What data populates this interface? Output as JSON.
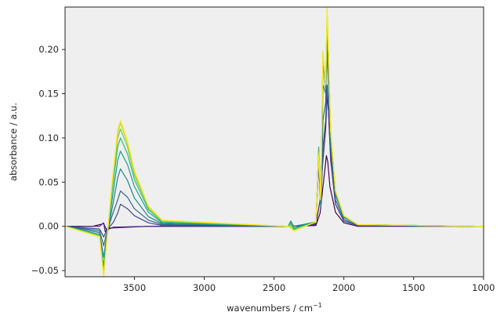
{
  "chart_data": {
    "type": "line",
    "title": "",
    "xlabel": "wavenumbers / cm",
    "xlabel_superscript": "−1",
    "ylabel": "absorbance / a.u.",
    "xlim": [
      3997,
      999
    ],
    "x_reversed": true,
    "ylim": [
      -0.057,
      0.248
    ],
    "xticks": [
      3500,
      3000,
      2500,
      2000,
      1500,
      1000
    ],
    "yticks": [
      -0.05,
      0.0,
      0.05,
      0.1,
      0.15,
      0.2
    ],
    "ytick_labels": [
      "−0.05",
      "0.00",
      "0.05",
      "0.10",
      "0.15",
      "0.20"
    ],
    "grid": false,
    "background": "#efefef",
    "colormap": "viridis",
    "series": [
      {
        "color": "#440154",
        "values": [
          [
            3997,
            0.0
          ],
          [
            3800,
            0.0
          ],
          [
            3720,
            0.003
          ],
          [
            3700,
            -0.004
          ],
          [
            3650,
            -0.001
          ],
          [
            3400,
            0.0
          ],
          [
            2400,
            0.0
          ],
          [
            2200,
            0.001
          ],
          [
            2170,
            0.015
          ],
          [
            2150,
            0.045
          ],
          [
            2135,
            0.066
          ],
          [
            2125,
            0.08
          ],
          [
            2115,
            0.073
          ],
          [
            2100,
            0.045
          ],
          [
            2060,
            0.016
          ],
          [
            2000,
            0.004
          ],
          [
            1900,
            0.0
          ],
          [
            1000,
            0.0
          ]
        ]
      },
      {
        "color": "#482878",
        "values": [
          [
            3997,
            0.0
          ],
          [
            3750,
            0.0
          ],
          [
            3720,
            0.004
          ],
          [
            3710,
            -0.006
          ],
          [
            3690,
            -0.002
          ],
          [
            3400,
            0.0
          ],
          [
            2400,
            0.0
          ],
          [
            2200,
            0.002
          ],
          [
            2170,
            0.03
          ],
          [
            2150,
            0.075
          ],
          [
            2130,
            0.11
          ],
          [
            2120,
            0.148
          ],
          [
            2110,
            0.13
          ],
          [
            2095,
            0.075
          ],
          [
            2060,
            0.025
          ],
          [
            2000,
            0.006
          ],
          [
            1900,
            0.001
          ],
          [
            1000,
            0.0
          ]
        ]
      },
      {
        "color": "#3e4989",
        "values": [
          [
            3997,
            0.0
          ],
          [
            3750,
            -0.003
          ],
          [
            3720,
            -0.012
          ],
          [
            3700,
            -0.005
          ],
          [
            3650,
            0.005
          ],
          [
            3620,
            0.015
          ],
          [
            3600,
            0.025
          ],
          [
            3550,
            0.02
          ],
          [
            3500,
            0.012
          ],
          [
            3400,
            0.004
          ],
          [
            3300,
            0.001
          ],
          [
            2400,
            0.0
          ],
          [
            2380,
            0.004
          ],
          [
            2360,
            0.0
          ],
          [
            2200,
            0.003
          ],
          [
            2180,
            0.07
          ],
          [
            2165,
            0.02
          ],
          [
            2150,
            0.09
          ],
          [
            2130,
            0.12
          ],
          [
            2120,
            0.16
          ],
          [
            2110,
            0.13
          ],
          [
            2095,
            0.08
          ],
          [
            2060,
            0.025
          ],
          [
            2000,
            0.006
          ],
          [
            1900,
            0.001
          ],
          [
            1000,
            0.0
          ]
        ]
      },
      {
        "color": "#31688e",
        "values": [
          [
            3997,
            0.0
          ],
          [
            3750,
            -0.005
          ],
          [
            3720,
            -0.022
          ],
          [
            3700,
            -0.008
          ],
          [
            3660,
            0.012
          ],
          [
            3620,
            0.03
          ],
          [
            3600,
            0.04
          ],
          [
            3550,
            0.033
          ],
          [
            3500,
            0.02
          ],
          [
            3400,
            0.007
          ],
          [
            3300,
            0.002
          ],
          [
            2400,
            0.0
          ],
          [
            2380,
            0.005
          ],
          [
            2360,
            0.0
          ],
          [
            2200,
            0.004
          ],
          [
            2180,
            0.08
          ],
          [
            2165,
            0.022
          ],
          [
            2150,
            0.12
          ],
          [
            2130,
            0.14
          ],
          [
            2120,
            0.2
          ],
          [
            2110,
            0.16
          ],
          [
            2095,
            0.09
          ],
          [
            2060,
            0.03
          ],
          [
            2000,
            0.008
          ],
          [
            1900,
            0.001
          ],
          [
            1000,
            0.0
          ]
        ]
      },
      {
        "color": "#26828e",
        "values": [
          [
            3997,
            0.0
          ],
          [
            3750,
            -0.007
          ],
          [
            3720,
            -0.035
          ],
          [
            3700,
            -0.012
          ],
          [
            3660,
            0.02
          ],
          [
            3620,
            0.055
          ],
          [
            3600,
            0.065
          ],
          [
            3550,
            0.052
          ],
          [
            3500,
            0.032
          ],
          [
            3400,
            0.011
          ],
          [
            3300,
            0.003
          ],
          [
            2400,
            0.0
          ],
          [
            2380,
            0.006
          ],
          [
            2360,
            0.0
          ],
          [
            2200,
            0.005
          ],
          [
            2180,
            0.085
          ],
          [
            2165,
            0.025
          ],
          [
            2150,
            0.16
          ],
          [
            2130,
            0.15
          ],
          [
            2120,
            0.22
          ],
          [
            2110,
            0.18
          ],
          [
            2095,
            0.1
          ],
          [
            2060,
            0.035
          ],
          [
            2000,
            0.01
          ],
          [
            1900,
            0.002
          ],
          [
            1000,
            0.0
          ]
        ]
      },
      {
        "color": "#1f9e89",
        "values": [
          [
            3997,
            0.0
          ],
          [
            3750,
            -0.009
          ],
          [
            3720,
            -0.045
          ],
          [
            3700,
            -0.016
          ],
          [
            3660,
            0.03
          ],
          [
            3620,
            0.075
          ],
          [
            3600,
            0.085
          ],
          [
            3550,
            0.07
          ],
          [
            3500,
            0.045
          ],
          [
            3400,
            0.016
          ],
          [
            3300,
            0.004
          ],
          [
            2400,
            0.0
          ],
          [
            2380,
            0.006
          ],
          [
            2360,
            -0.002
          ],
          [
            2200,
            0.005
          ],
          [
            2180,
            0.088
          ],
          [
            2165,
            0.028
          ],
          [
            2150,
            0.185
          ],
          [
            2130,
            0.155
          ],
          [
            2120,
            0.235
          ],
          [
            2110,
            0.19
          ],
          [
            2095,
            0.105
          ],
          [
            2060,
            0.038
          ],
          [
            2000,
            0.011
          ],
          [
            1900,
            0.002
          ],
          [
            1000,
            0.0
          ]
        ]
      },
      {
        "color": "#35b779",
        "values": [
          [
            3997,
            0.0
          ],
          [
            3750,
            -0.01
          ],
          [
            3720,
            -0.052
          ],
          [
            3700,
            -0.018
          ],
          [
            3660,
            0.04
          ],
          [
            3620,
            0.09
          ],
          [
            3600,
            0.1
          ],
          [
            3550,
            0.082
          ],
          [
            3500,
            0.053
          ],
          [
            3400,
            0.019
          ],
          [
            3300,
            0.005
          ],
          [
            2400,
            0.0
          ],
          [
            2380,
            0.004
          ],
          [
            2360,
            -0.003
          ],
          [
            2200,
            0.005
          ],
          [
            2180,
            0.09
          ],
          [
            2165,
            0.03
          ],
          [
            2150,
            0.195
          ],
          [
            2130,
            0.16
          ],
          [
            2120,
            0.24
          ],
          [
            2110,
            0.195
          ],
          [
            2095,
            0.108
          ],
          [
            2060,
            0.04
          ],
          [
            2000,
            0.012
          ],
          [
            1900,
            0.002
          ],
          [
            1000,
            0.0
          ]
        ]
      },
      {
        "color": "#6ece58",
        "values": [
          [
            3997,
            0.0
          ],
          [
            3750,
            -0.011
          ],
          [
            3720,
            -0.055
          ],
          [
            3700,
            -0.019
          ],
          [
            3660,
            0.045
          ],
          [
            3620,
            0.1
          ],
          [
            3600,
            0.11
          ],
          [
            3550,
            0.09
          ],
          [
            3500,
            0.058
          ],
          [
            3400,
            0.021
          ],
          [
            3300,
            0.006
          ],
          [
            2400,
            0.0
          ],
          [
            2380,
            0.002
          ],
          [
            2360,
            -0.004
          ],
          [
            2200,
            0.005
          ],
          [
            2180,
            0.085
          ],
          [
            2165,
            0.03
          ],
          [
            2150,
            0.197
          ],
          [
            2130,
            0.16
          ],
          [
            2120,
            0.242
          ],
          [
            2110,
            0.195
          ],
          [
            2095,
            0.108
          ],
          [
            2060,
            0.04
          ],
          [
            2000,
            0.012
          ],
          [
            1900,
            0.002
          ],
          [
            1000,
            0.0
          ]
        ]
      },
      {
        "color": "#b5de2b",
        "values": [
          [
            3997,
            0.0
          ],
          [
            3750,
            -0.011
          ],
          [
            3720,
            -0.056
          ],
          [
            3700,
            -0.019
          ],
          [
            3660,
            0.048
          ],
          [
            3620,
            0.105
          ],
          [
            3600,
            0.117
          ],
          [
            3550,
            0.094
          ],
          [
            3500,
            0.061
          ],
          [
            3400,
            0.022
          ],
          [
            3300,
            0.006
          ],
          [
            2400,
            0.0
          ],
          [
            2380,
            0.0
          ],
          [
            2360,
            -0.005
          ],
          [
            2200,
            0.005
          ],
          [
            2180,
            0.083
          ],
          [
            2165,
            0.03
          ],
          [
            2150,
            0.198
          ],
          [
            2130,
            0.16
          ],
          [
            2120,
            0.245
          ],
          [
            2110,
            0.195
          ],
          [
            2095,
            0.108
          ],
          [
            2060,
            0.04
          ],
          [
            2000,
            0.012
          ],
          [
            1900,
            0.002
          ],
          [
            1000,
            0.0
          ]
        ]
      },
      {
        "color": "#fde725",
        "values": [
          [
            3997,
            0.0
          ],
          [
            3750,
            -0.012
          ],
          [
            3720,
            -0.057
          ],
          [
            3700,
            -0.02
          ],
          [
            3660,
            0.05
          ],
          [
            3620,
            0.11
          ],
          [
            3600,
            0.12
          ],
          [
            3550,
            0.097
          ],
          [
            3500,
            0.063
          ],
          [
            3400,
            0.023
          ],
          [
            3300,
            0.007
          ],
          [
            2400,
            0.0
          ],
          [
            2380,
            -0.002
          ],
          [
            2360,
            -0.005
          ],
          [
            2200,
            0.005
          ],
          [
            2180,
            0.08
          ],
          [
            2165,
            0.03
          ],
          [
            2150,
            0.198
          ],
          [
            2130,
            0.16
          ],
          [
            2120,
            0.248
          ],
          [
            2110,
            0.195
          ],
          [
            2095,
            0.108
          ],
          [
            2060,
            0.04
          ],
          [
            2000,
            0.012
          ],
          [
            1900,
            0.002
          ],
          [
            1000,
            0.0
          ]
        ]
      }
    ]
  }
}
